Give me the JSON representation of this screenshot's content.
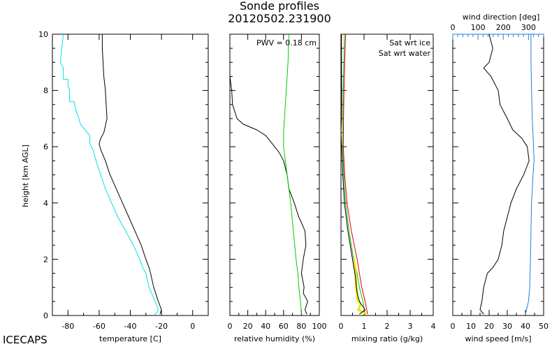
{
  "figure": {
    "title_line1": "Sonde profiles",
    "title_line2": "20120502.231900",
    "footer": "ICECAPS",
    "ylabel": "height [km AGL]"
  },
  "chart_data": [
    {
      "type": "line",
      "xlabel": "temperature [C]",
      "ylabel": "height [km AGL]",
      "xlim": [
        -90,
        10
      ],
      "ylim": [
        0,
        10
      ],
      "xticks": [
        -80,
        -60,
        -40,
        -20,
        0
      ],
      "yticks": [
        0,
        2,
        4,
        6,
        8,
        10
      ],
      "series": [
        {
          "color": "#000000",
          "points": [
            [
              -21,
              0.05
            ],
            [
              -20,
              0.2
            ],
            [
              -22,
              0.5
            ],
            [
              -25,
              1.0
            ],
            [
              -27,
              1.5
            ],
            [
              -28,
              1.7
            ],
            [
              -30,
              2.0
            ],
            [
              -33,
              2.5
            ],
            [
              -37,
              3.0
            ],
            [
              -41,
              3.5
            ],
            [
              -45,
              4.0
            ],
            [
              -49,
              4.5
            ],
            [
              -53,
              5.0
            ],
            [
              -56,
              5.5
            ],
            [
              -59,
              5.9
            ],
            [
              -60,
              6.1
            ],
            [
              -59,
              6.3
            ],
            [
              -57,
              6.5
            ],
            [
              -55,
              7.0
            ],
            [
              -55.5,
              7.5
            ],
            [
              -56,
              8.0
            ],
            [
              -57,
              8.5
            ],
            [
              -57.5,
              9.0
            ],
            [
              -58,
              9.5
            ],
            [
              -58,
              10.0
            ]
          ]
        },
        {
          "color": "#00e0f0",
          "points": [
            [
              -25,
              0.0
            ],
            [
              -23,
              0.1
            ],
            [
              -22,
              0.2
            ],
            [
              -24,
              0.5
            ],
            [
              -28,
              1.0
            ],
            [
              -30,
              1.5
            ],
            [
              -32,
              1.7
            ],
            [
              -34,
              2.0
            ],
            [
              -38,
              2.5
            ],
            [
              -43,
              3.0
            ],
            [
              -48,
              3.5
            ],
            [
              -52,
              4.0
            ],
            [
              -56,
              4.5
            ],
            [
              -59,
              5.0
            ],
            [
              -62,
              5.5
            ],
            [
              -64,
              5.9
            ],
            [
              -66,
              6.1
            ],
            [
              -66,
              6.4
            ],
            [
              -69,
              6.6
            ],
            [
              -72,
              6.8
            ],
            [
              -73,
              7.0
            ],
            [
              -75,
              7.3
            ],
            [
              -76,
              7.6
            ],
            [
              -79,
              7.6
            ],
            [
              -79,
              8.0
            ],
            [
              -80,
              8.2
            ],
            [
              -80,
              8.4
            ],
            [
              -83,
              8.4
            ],
            [
              -83,
              8.8
            ],
            [
              -85,
              9.0
            ],
            [
              -84,
              9.5
            ],
            [
              -83,
              10.0
            ]
          ]
        }
      ]
    },
    {
      "type": "line",
      "xlabel": "relative humidity (%)",
      "xlim": [
        0,
        100
      ],
      "ylim": [
        0,
        10
      ],
      "xticks": [
        0,
        20,
        40,
        60,
        80,
        100
      ],
      "yticks": [
        0,
        2,
        4,
        6,
        8,
        10
      ],
      "annotation": "PWV = 0.18 cm",
      "series": [
        {
          "color": "#000000",
          "points": [
            [
              86,
              0.05
            ],
            [
              84,
              0.2
            ],
            [
              87,
              0.5
            ],
            [
              82,
              0.8
            ],
            [
              83,
              1.0
            ],
            [
              80,
              1.5
            ],
            [
              82,
              2.0
            ],
            [
              85,
              2.5
            ],
            [
              84,
              3.0
            ],
            [
              80,
              3.3
            ],
            [
              77,
              3.5
            ],
            [
              72,
              4.0
            ],
            [
              66,
              4.5
            ],
            [
              64,
              5.0
            ],
            [
              60,
              5.5
            ],
            [
              55,
              5.8
            ],
            [
              50,
              6.0
            ],
            [
              45,
              6.2
            ],
            [
              40,
              6.4
            ],
            [
              30,
              6.6
            ],
            [
              15,
              6.8
            ],
            [
              8,
              7.0
            ],
            [
              3,
              7.5
            ],
            [
              2,
              8.0
            ],
            [
              0,
              8.5
            ],
            [
              0,
              10.0
            ]
          ]
        },
        {
          "color": "#00cc00",
          "points": [
            [
              80,
              0.05
            ],
            [
              79,
              0.5
            ],
            [
              77,
              1.0
            ],
            [
              76,
              1.5
            ],
            [
              74,
              2.0
            ],
            [
              71,
              3.0
            ],
            [
              68,
              4.0
            ],
            [
              64,
              5.0
            ],
            [
              60,
              6.0
            ],
            [
              60,
              6.5
            ],
            [
              61,
              7.0
            ],
            [
              63,
              8.0
            ],
            [
              65,
              9.0
            ],
            [
              66,
              10.0
            ]
          ]
        }
      ]
    },
    {
      "type": "line",
      "xlabel": "mixing ratio (g/kg)",
      "xlim": [
        0,
        4
      ],
      "ylim": [
        0,
        10
      ],
      "xticks": [
        0,
        1,
        2,
        3,
        4
      ],
      "yticks": [
        0,
        2,
        4,
        6,
        8,
        10
      ],
      "legend": [
        "Sat wrt ice",
        "Sat wrt water"
      ],
      "series": [
        {
          "name": "Sat wrt ice",
          "color": "#00cc00",
          "points": [
            [
              1.05,
              0.05
            ],
            [
              0.95,
              0.5
            ],
            [
              0.8,
              1.0
            ],
            [
              0.7,
              1.5
            ],
            [
              0.55,
              2.0
            ],
            [
              0.35,
              3.0
            ],
            [
              0.2,
              4.0
            ],
            [
              0.12,
              5.0
            ],
            [
              0.08,
              6.0
            ],
            [
              0.08,
              7.0
            ],
            [
              0.1,
              8.0
            ],
            [
              0.12,
              9.0
            ],
            [
              0.15,
              10.0
            ]
          ]
        },
        {
          "name": "Sat wrt water",
          "color": "#e00000",
          "points": [
            [
              1.15,
              0.05
            ],
            [
              1.05,
              0.5
            ],
            [
              0.9,
              1.0
            ],
            [
              0.8,
              1.5
            ],
            [
              0.7,
              2.0
            ],
            [
              0.45,
              3.0
            ],
            [
              0.26,
              4.0
            ],
            [
              0.16,
              5.0
            ],
            [
              0.1,
              6.0
            ],
            [
              0.11,
              7.0
            ],
            [
              0.13,
              8.0
            ],
            [
              0.16,
              9.0
            ],
            [
              0.2,
              10.0
            ]
          ]
        },
        {
          "color": "#e8e800",
          "points": [
            [
              1.1,
              0.05
            ],
            [
              0.75,
              0.2
            ],
            [
              0.85,
              0.4
            ],
            [
              0.7,
              0.6
            ],
            [
              0.7,
              0.8
            ],
            [
              0.65,
              1.0
            ],
            [
              0.65,
              1.5
            ],
            [
              0.55,
              2.0
            ]
          ]
        },
        {
          "color": "#000000",
          "points": [
            [
              0.8,
              0.05
            ],
            [
              1.05,
              0.2
            ],
            [
              0.8,
              0.5
            ],
            [
              0.7,
              0.8
            ],
            [
              0.65,
              1.2
            ],
            [
              0.6,
              1.5
            ],
            [
              0.5,
              2.0
            ],
            [
              0.3,
              3.0
            ],
            [
              0.15,
              4.0
            ],
            [
              0.08,
              5.0
            ],
            [
              0.03,
              6.0
            ],
            [
              0.0,
              6.5
            ],
            [
              0.02,
              7.0
            ],
            [
              0.03,
              8.0
            ],
            [
              0.02,
              9.0
            ],
            [
              0.02,
              10.0
            ]
          ]
        }
      ]
    },
    {
      "type": "line",
      "xlabel": "wind speed [m/s]",
      "xlim": [
        0,
        50
      ],
      "ylim": [
        0,
        10
      ],
      "xticks": [
        0,
        10,
        20,
        30,
        40,
        50
      ],
      "yticks": [
        0,
        2,
        4,
        6,
        8,
        10
      ],
      "top_axis": {
        "label": "wind direction [deg]",
        "xlim": [
          0,
          360
        ],
        "ticks": [
          0,
          100,
          200,
          300
        ],
        "color": "#1e7fd8"
      },
      "series": [
        {
          "color": "#000000",
          "points": [
            [
              17,
              0.05
            ],
            [
              15,
              0.2
            ],
            [
              16,
              0.5
            ],
            [
              17,
              1.0
            ],
            [
              19,
              1.5
            ],
            [
              22,
              1.7
            ],
            [
              25,
              2.0
            ],
            [
              27,
              2.5
            ],
            [
              28,
              3.0
            ],
            [
              30,
              3.5
            ],
            [
              32,
              4.0
            ],
            [
              35,
              4.5
            ],
            [
              39,
              5.0
            ],
            [
              42,
              5.5
            ],
            [
              41,
              6.0
            ],
            [
              38,
              6.3
            ],
            [
              33,
              6.6
            ],
            [
              30,
              7.0
            ],
            [
              26,
              7.5
            ],
            [
              25,
              8.0
            ],
            [
              21,
              8.5
            ],
            [
              17,
              8.8
            ],
            [
              20,
              9.0
            ],
            [
              22,
              9.5
            ],
            [
              20,
              10.0
            ]
          ]
        },
        {
          "color": "#1e7fd8",
          "axis": "top",
          "points": [
            [
              288,
              0.05
            ],
            [
              300,
              0.5
            ],
            [
              305,
              1.0
            ],
            [
              308,
              2.0
            ],
            [
              310,
              3.0
            ],
            [
              312,
              4.0
            ],
            [
              318,
              5.0
            ],
            [
              322,
              5.5
            ],
            [
              320,
              6.0
            ],
            [
              315,
              7.0
            ],
            [
              312,
              8.0
            ],
            [
              310,
              9.0
            ],
            [
              310,
              10.0
            ]
          ]
        }
      ]
    }
  ]
}
